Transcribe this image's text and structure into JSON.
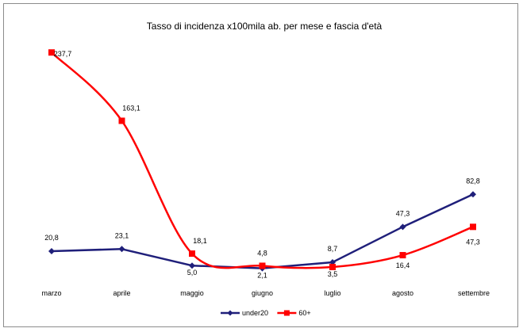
{
  "chart_data": {
    "type": "line",
    "title": "Tasso di incidenza x100mila ab. per mese e fascia d'età",
    "xlabel": "",
    "ylabel": "",
    "categories": [
      "marzo",
      "aprile",
      "maggio",
      "giugno",
      "luglio",
      "agosto",
      "settembre"
    ],
    "ylim": [
      0,
      250
    ],
    "grid": false,
    "legend_position": "bottom",
    "series": [
      {
        "name": "under20",
        "color": "#1f1f7a",
        "marker": "diamond",
        "smooth": false,
        "values": [
          20.8,
          23.1,
          5.0,
          2.1,
          8.7,
          47.3,
          82.8
        ],
        "labels": [
          "20,8",
          "23,1",
          "5,0",
          "2,1",
          "8,7",
          "47,3",
          "82,8"
        ]
      },
      {
        "name": "60+",
        "color": "#ff0000",
        "marker": "square",
        "smooth": true,
        "values": [
          237.7,
          163.1,
          18.1,
          4.8,
          3.5,
          16.4,
          47.3
        ],
        "labels": [
          "237,7",
          "163,1",
          "18,1",
          "4,8",
          "3,5",
          "16,4",
          "47,3"
        ]
      }
    ]
  }
}
